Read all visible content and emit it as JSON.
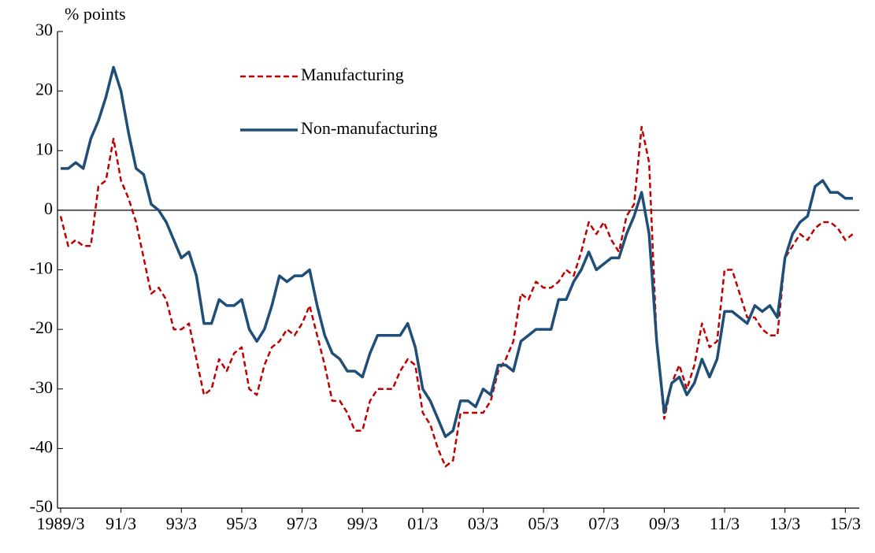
{
  "chart_data": {
    "type": "line",
    "y_label": "% points",
    "categories": [
      "1989/3",
      null,
      null,
      null,
      null,
      null,
      null,
      null,
      "91/3",
      null,
      null,
      null,
      null,
      null,
      null,
      null,
      "93/3",
      null,
      null,
      null,
      null,
      null,
      null,
      null,
      "95/3",
      null,
      null,
      null,
      null,
      null,
      null,
      null,
      "97/3",
      null,
      null,
      null,
      null,
      null,
      null,
      null,
      "99/3",
      null,
      null,
      null,
      null,
      null,
      null,
      null,
      "01/3",
      null,
      null,
      null,
      null,
      null,
      null,
      null,
      "03/3",
      null,
      null,
      null,
      null,
      null,
      null,
      null,
      "05/3",
      null,
      null,
      null,
      null,
      null,
      null,
      null,
      "07/3",
      null,
      null,
      null,
      null,
      null,
      null,
      null,
      "09/3",
      null,
      null,
      null,
      null,
      null,
      null,
      null,
      "11/3",
      null,
      null,
      null,
      null,
      null,
      null,
      null,
      "13/3",
      null,
      null,
      null,
      null,
      null,
      null,
      null,
      "15/3",
      null
    ],
    "series": [
      {
        "name": "Manufacturing",
        "color": "#c00000",
        "line_style": "dashed",
        "values": [
          -1,
          -6,
          -5,
          -6,
          -6,
          4,
          5,
          12,
          5,
          2,
          -2,
          -8,
          -14,
          -13,
          -15,
          -20,
          -20,
          -19,
          -25,
          -31,
          -30,
          -25,
          -27,
          -24,
          -23,
          -30,
          -31,
          -26,
          -23,
          -22,
          -20,
          -21,
          -19,
          -16,
          -21,
          -26,
          -32,
          -32,
          -34,
          -37,
          -37,
          -32,
          -30,
          -30,
          -30,
          -27,
          -25,
          -26,
          -34,
          -36,
          -40,
          -43,
          -42,
          -34,
          -34,
          -34,
          -34,
          -32,
          -27,
          -25,
          -22,
          -14,
          -15,
          -12,
          -13,
          -13,
          -12,
          -10,
          -11,
          -7,
          -2,
          -4,
          -2,
          -5,
          -7,
          -1,
          1,
          14,
          8,
          -22,
          -35,
          -29,
          -26,
          -30,
          -26,
          -19,
          -23,
          -22,
          -10,
          -10,
          -14,
          -18,
          -18,
          -20,
          -21,
          -21,
          -8,
          -6,
          -4,
          -5,
          -3,
          -2,
          -2,
          -3,
          -5,
          -4
        ]
      },
      {
        "name": "Non-manufacturing",
        "color": "#1f4e79",
        "line_style": "solid",
        "values": [
          7,
          7,
          8,
          7,
          12,
          15,
          19,
          24,
          20,
          13,
          7,
          6,
          1,
          0,
          -2,
          -5,
          -8,
          -7,
          -11,
          -19,
          -19,
          -15,
          -16,
          -16,
          -15,
          -20,
          -22,
          -20,
          -16,
          -11,
          -12,
          -11,
          -11,
          -10,
          -16,
          -21,
          -24,
          -25,
          -27,
          -27,
          -28,
          -24,
          -21,
          -21,
          -21,
          -21,
          -19,
          -23,
          -30,
          -32,
          -35,
          -38,
          -37,
          -32,
          -32,
          -33,
          -30,
          -31,
          -26,
          -26,
          -27,
          -22,
          -21,
          -20,
          -20,
          -20,
          -15,
          -15,
          -12,
          -10,
          -7,
          -10,
          -9,
          -8,
          -8,
          -4,
          -1,
          3,
          -4,
          -22,
          -34,
          -29,
          -28,
          -31,
          -29,
          -25,
          -28,
          -25,
          -17,
          -17,
          -18,
          -19,
          -16,
          -17,
          -16,
          -18,
          -8,
          -4,
          -2,
          -1,
          4,
          5,
          3,
          3,
          2,
          2
        ]
      }
    ],
    "ylim": [
      -50,
      30
    ],
    "yticks": [
      -50,
      -40,
      -30,
      -20,
      -10,
      0,
      10,
      20,
      30
    ],
    "zero_line": true
  }
}
